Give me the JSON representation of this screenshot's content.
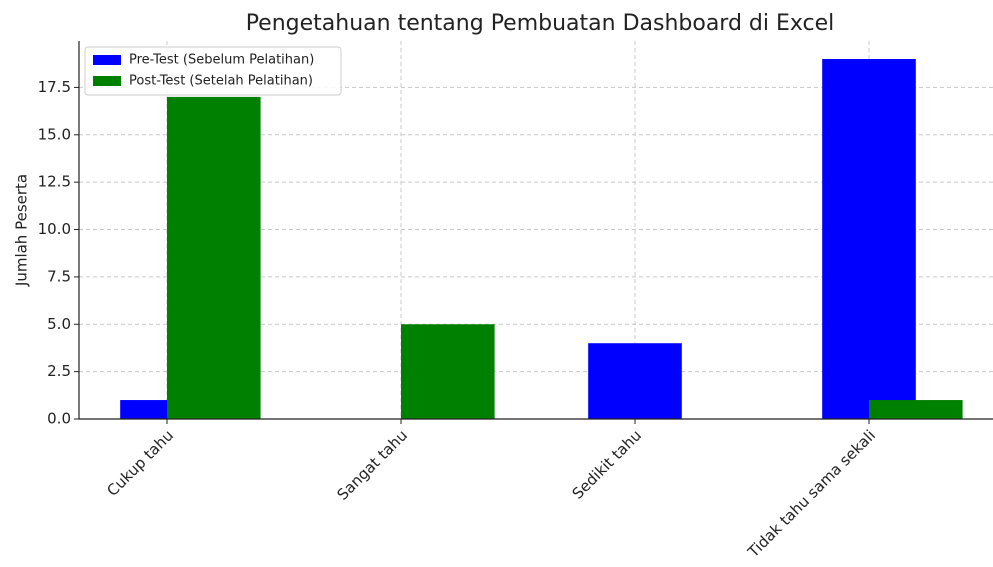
{
  "chart_data": {
    "type": "bar",
    "title": "Pengetahuan tentang Pembuatan Dashboard di Excel",
    "y_label": "Jumlah Peserta",
    "categories": [
      "Cukup tahu",
      "Sangat tahu",
      "Sedikit tahu",
      "Tidak tahu sama sekali"
    ],
    "series": [
      {
        "name": "Pre-Test (Sebelum Pelatihan)",
        "color": "#0000ff",
        "values": [
          1,
          0,
          4,
          19
        ]
      },
      {
        "name": "Post-Test (Setelah Pelatihan)",
        "color": "#008000",
        "values": [
          17,
          5,
          0,
          1
        ]
      }
    ],
    "ylim": [
      0,
      19.95
    ],
    "yticks": [
      {
        "value": 0,
        "label": "0.0"
      },
      2.5,
      {
        "value": 5,
        "label": "5.0"
      },
      7.5,
      {
        "value": 10,
        "label": "10.0"
      },
      12.5,
      {
        "value": 15,
        "label": "15.0"
      },
      17.5
    ],
    "grid": true,
    "legend": "upper-left"
  }
}
